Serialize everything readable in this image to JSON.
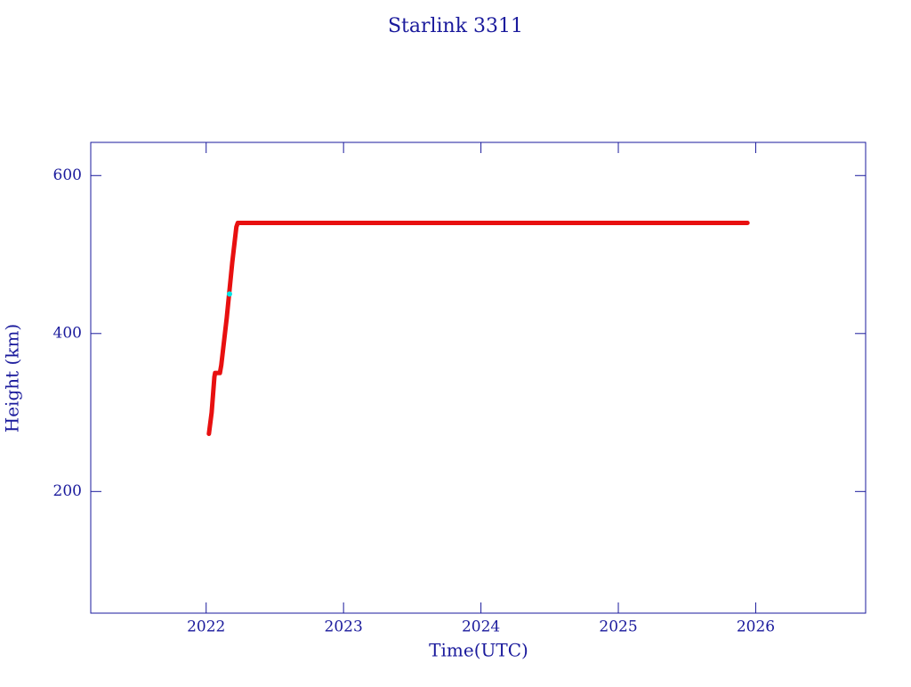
{
  "chart_data": {
    "type": "line",
    "title": "Starlink 3311",
    "x_label": "Time(UTC)",
    "y_label": "Height (km)",
    "xlim": [
      2021.16,
      2026.8
    ],
    "ylim": [
      46,
      642
    ],
    "xticks": [
      2022,
      2023,
      2024,
      2025,
      2026
    ],
    "yticks": [
      200,
      400,
      600
    ],
    "series": [
      {
        "color": "#e81010",
        "x": [
          2022.02,
          2022.04,
          2022.06,
          2022.065,
          2022.1,
          2022.11,
          2022.15,
          2022.19,
          2022.22,
          2022.23,
          2025.94
        ],
        "values": [
          273,
          300,
          345,
          350,
          350,
          360,
          420,
          490,
          535,
          540,
          540
        ]
      },
      {
        "color": "#00e5e5",
        "x": [
          2022.17
        ],
        "values": [
          450
        ]
      }
    ]
  }
}
